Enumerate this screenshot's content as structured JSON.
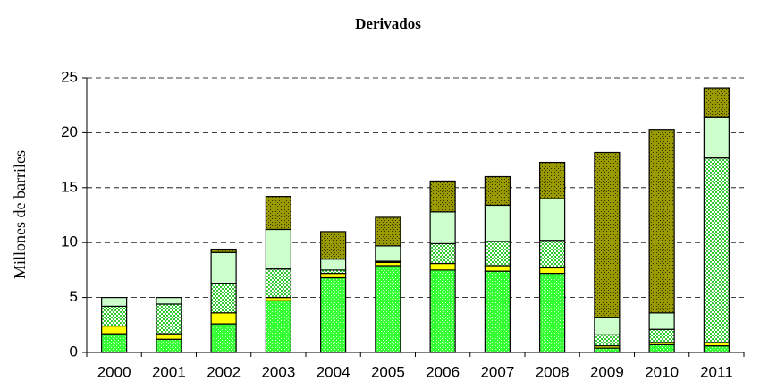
{
  "chart_data": {
    "type": "stacked_bar",
    "title": "Derivados",
    "y_label": "Millones de barriles",
    "categories": [
      "2000",
      "2001",
      "2002",
      "2003",
      "2004",
      "2005",
      "2006",
      "2007",
      "2008",
      "2009",
      "2010",
      "2011"
    ],
    "series": [
      {
        "color": "#33ff33",
        "values": [
          1.7,
          1.2,
          2.6,
          4.7,
          6.8,
          7.9,
          7.5,
          7.4,
          7.2,
          0.4,
          0.7,
          0.6
        ]
      },
      {
        "color": "#ffff00",
        "values": [
          0.7,
          0.5,
          1.0,
          0.3,
          0.4,
          0.3,
          0.6,
          0.5,
          0.5,
          0.2,
          0.2,
          0.3
        ]
      },
      {
        "color": "#33cc33",
        "values": [
          1.8,
          2.7,
          2.7,
          2.6,
          0.3,
          0.1,
          1.8,
          2.2,
          2.5,
          1.0,
          1.2,
          16.8
        ]
      },
      {
        "color": "#ccffcc",
        "values": [
          0.8,
          0.6,
          2.8,
          3.6,
          1.0,
          1.4,
          2.9,
          3.3,
          3.8,
          1.6,
          1.5,
          3.7
        ]
      },
      {
        "color": "#999900",
        "values": [
          0,
          0,
          0.3,
          3.0,
          2.5,
          2.6,
          2.8,
          2.6,
          3.3,
          15.0,
          16.7,
          2.7
        ]
      }
    ],
    "ylim": [
      0,
      25
    ],
    "yticks": [
      0,
      5,
      10,
      15,
      20,
      25
    ],
    "grid": true
  }
}
